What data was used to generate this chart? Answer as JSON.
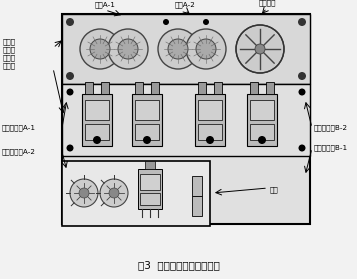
{
  "title": "图3  部分大功耗器件布置图",
  "bg_color": "#f2f2f2",
  "labels": {
    "qijian_A1": "器件A-1",
    "qijian_A2": "器件A-2",
    "diangan": "电感器件",
    "dagong": "大功耗\n器件安\n装在盒\n体底板",
    "banjingti_A1": "半导体器件A-1",
    "banjingti_A2": "半导体器件A-2",
    "banjingti_B2": "半导体器件B-2",
    "banjingti_B1": "半导体器件B-1",
    "xinpian": "芯片"
  }
}
